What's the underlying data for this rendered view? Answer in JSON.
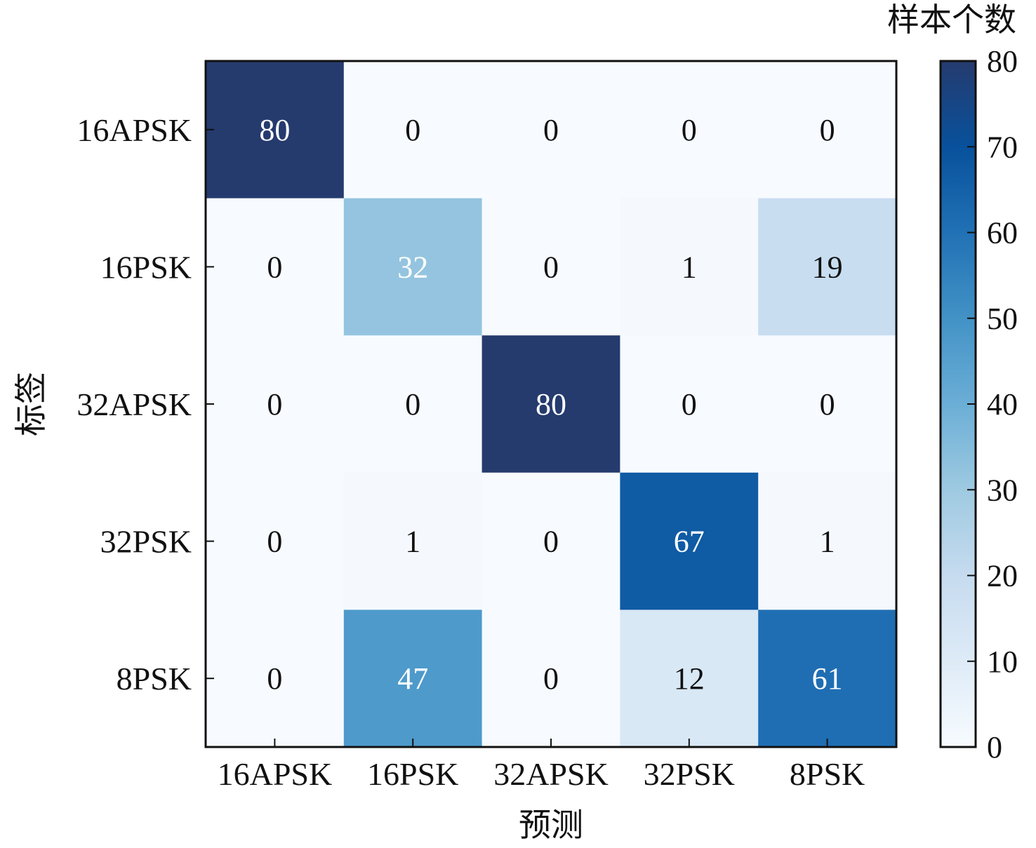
{
  "chart_data": {
    "type": "heatmap",
    "xlabel": "预测",
    "ylabel": "标签",
    "x_categories": [
      "16APSK",
      "16PSK",
      "32APSK",
      "32PSK",
      "8PSK"
    ],
    "y_categories": [
      "16APSK",
      "16PSK",
      "32APSK",
      "32PSK",
      "8PSK"
    ],
    "values": [
      [
        80,
        0,
        0,
        0,
        0
      ],
      [
        0,
        32,
        0,
        1,
        19
      ],
      [
        0,
        0,
        80,
        0,
        0
      ],
      [
        0,
        1,
        0,
        67,
        1
      ],
      [
        0,
        47,
        0,
        12,
        61
      ]
    ],
    "colorbar": {
      "label": "样本个数",
      "ticks": [
        0,
        10,
        20,
        30,
        40,
        50,
        60,
        70,
        80
      ],
      "range": [
        0,
        80
      ]
    },
    "colormap": [
      "#f7fbff",
      "#deebf7",
      "#c6dbef",
      "#9ecae1",
      "#6baed6",
      "#4292c6",
      "#2171b5",
      "#08519c",
      "#253b6e"
    ]
  }
}
